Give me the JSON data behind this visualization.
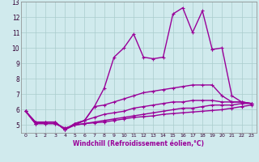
{
  "x": [
    0,
    1,
    2,
    3,
    4,
    5,
    6,
    7,
    8,
    9,
    10,
    11,
    12,
    13,
    14,
    15,
    16,
    17,
    18,
    19,
    20,
    21,
    22,
    23
  ],
  "line1": [
    5.9,
    5.2,
    5.2,
    5.2,
    4.7,
    5.1,
    5.3,
    6.2,
    7.4,
    9.4,
    10.0,
    10.9,
    9.4,
    9.3,
    9.4,
    12.2,
    12.6,
    11.0,
    12.4,
    9.9,
    null,
    null,
    null,
    null
  ],
  "line2": [
    null,
    null,
    null,
    null,
    null,
    null,
    null,
    null,
    null,
    null,
    null,
    null,
    null,
    null,
    null,
    null,
    null,
    null,
    null,
    9.9,
    10.0,
    6.9,
    6.5,
    6.4
  ],
  "line3": [
    5.9,
    5.2,
    5.2,
    5.2,
    4.7,
    5.1,
    5.3,
    6.2,
    6.3,
    6.5,
    6.7,
    6.9,
    7.1,
    7.2,
    7.3,
    7.4,
    7.5,
    7.6,
    7.6,
    7.6,
    6.9,
    6.5,
    6.5,
    6.4
  ],
  "line4": [
    5.9,
    5.1,
    5.2,
    5.2,
    4.7,
    5.0,
    5.3,
    5.5,
    5.7,
    5.8,
    5.9,
    6.1,
    6.2,
    6.3,
    6.4,
    6.5,
    6.5,
    6.6,
    6.6,
    6.6,
    6.5,
    6.5,
    6.5,
    6.4
  ],
  "line5": [
    5.9,
    5.1,
    5.1,
    5.1,
    4.8,
    5.0,
    5.1,
    5.2,
    5.3,
    5.4,
    5.5,
    5.6,
    5.7,
    5.8,
    5.9,
    6.0,
    6.1,
    6.1,
    6.2,
    6.3,
    6.3,
    6.3,
    6.4,
    6.4
  ],
  "line6": [
    5.9,
    5.1,
    5.1,
    5.1,
    4.8,
    5.0,
    5.1,
    5.15,
    5.2,
    5.3,
    5.4,
    5.5,
    5.55,
    5.6,
    5.7,
    5.75,
    5.8,
    5.85,
    5.9,
    5.95,
    6.0,
    6.1,
    6.2,
    6.3
  ],
  "color": "#990099",
  "bg_color": "#d0eaed",
  "grid_color": "#aacccc",
  "xlabel": "Windchill (Refroidissement éolien,°C)",
  "ylim": [
    4.5,
    13
  ],
  "xlim": [
    -0.5,
    23.5
  ],
  "yticks": [
    5,
    6,
    7,
    8,
    9,
    10,
    11,
    12,
    13
  ],
  "xticks": [
    0,
    1,
    2,
    3,
    4,
    5,
    6,
    7,
    8,
    9,
    10,
    11,
    12,
    13,
    14,
    15,
    16,
    17,
    18,
    19,
    20,
    21,
    22,
    23
  ],
  "markersize": 2.5,
  "linewidth": 1.0
}
